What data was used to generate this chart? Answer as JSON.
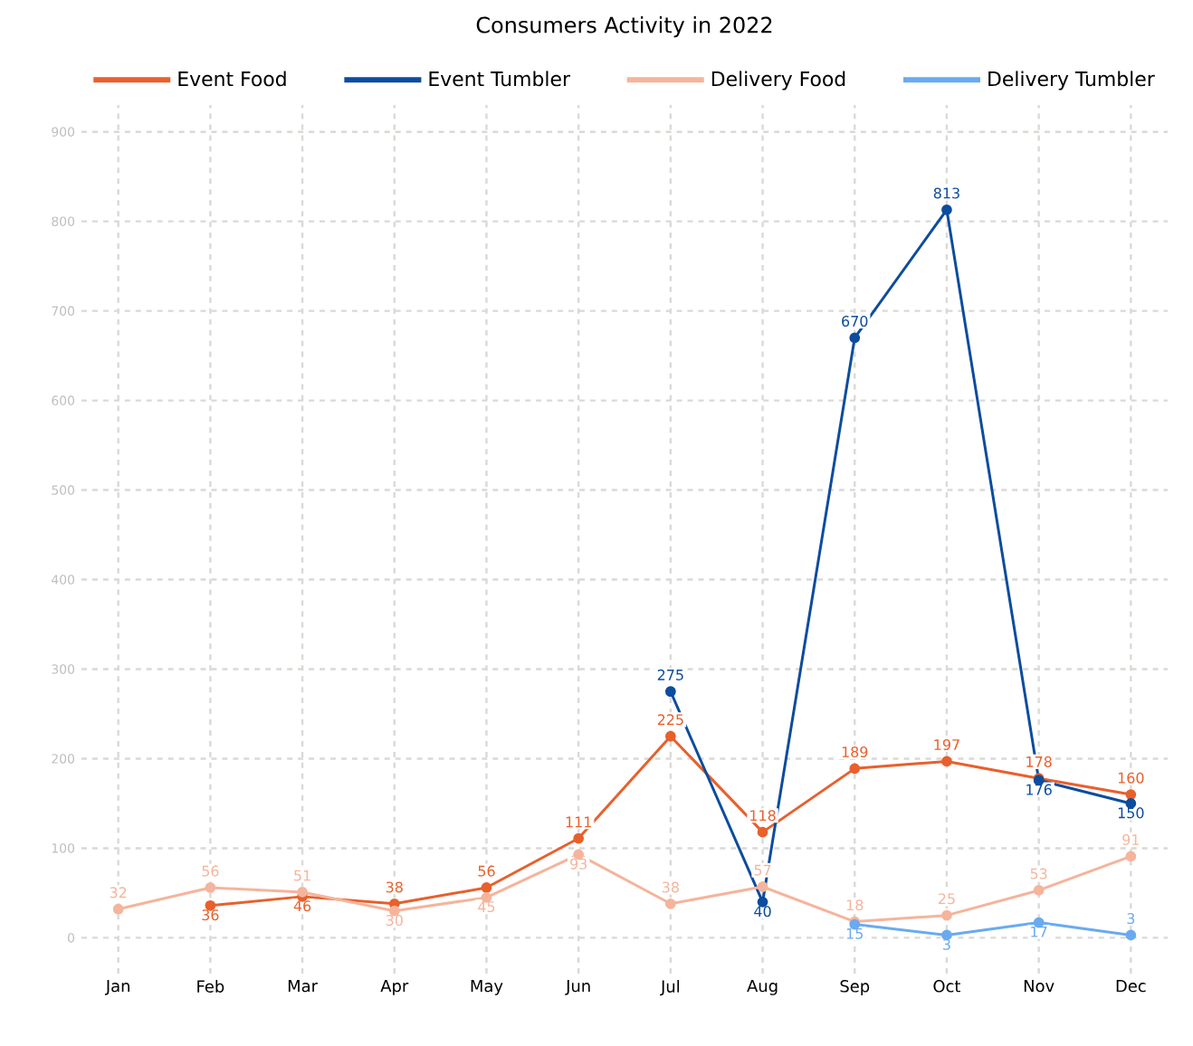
{
  "chart_data": {
    "type": "line",
    "title": "Consumers Activity in 2022",
    "categories": [
      "Jan",
      "Feb",
      "Mar",
      "Apr",
      "May",
      "Jun",
      "Jul",
      "Aug",
      "Sep",
      "Oct",
      "Nov",
      "Dec"
    ],
    "series": [
      {
        "name": "Event Food",
        "color": "#e8602c",
        "values": [
          null,
          36,
          46,
          38,
          56,
          111,
          225,
          118,
          189,
          197,
          178,
          160
        ]
      },
      {
        "name": "Event Tumbler",
        "color": "#0d4c9e",
        "values": [
          null,
          null,
          null,
          null,
          null,
          null,
          275,
          40,
          670,
          813,
          176,
          150
        ]
      },
      {
        "name": "Delivery Food",
        "color": "#f5b49c",
        "values": [
          32,
          56,
          51,
          30,
          45,
          93,
          38,
          57,
          18,
          25,
          53,
          91
        ]
      },
      {
        "name": "Delivery Tumbler",
        "color": "#6aaaf0",
        "values": [
          null,
          null,
          null,
          null,
          null,
          null,
          null,
          null,
          15,
          3,
          17,
          3
        ]
      }
    ],
    "ylim": [
      -40,
      930
    ],
    "yticks": [
      0,
      100,
      200,
      300,
      400,
      500,
      600,
      700,
      800,
      900
    ],
    "grid": true,
    "legend": "top",
    "marker": "circle",
    "line_style": "solid",
    "data_labels": true
  }
}
